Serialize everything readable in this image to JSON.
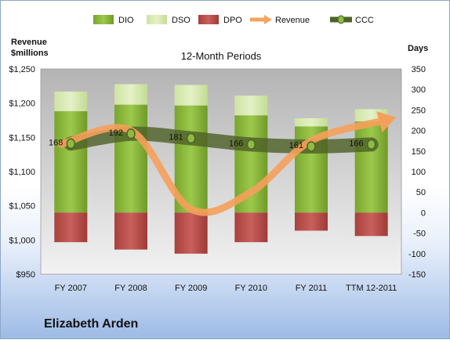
{
  "chart_data": {
    "type": "bar",
    "title": "12-Month Periods",
    "categories": [
      "FY 2007",
      "FY 2008",
      "FY 2009",
      "FY 2010",
      "FY 2011",
      "TTM 12-2011"
    ],
    "y_left": {
      "label_line1": "Revenue",
      "label_line2": "$millions",
      "range": [
        950,
        1250
      ],
      "ticks": [
        "$950",
        "$1,000",
        "$1,050",
        "$1,100",
        "$1,150",
        "$1,200",
        "$1,250"
      ]
    },
    "y_right": {
      "label": "Days",
      "range": [
        -150,
        350
      ],
      "ticks": [
        "-150",
        "-100",
        "-50",
        "0",
        "50",
        "100",
        "150",
        "200",
        "250",
        "300",
        "350"
      ]
    },
    "legend_position": "top",
    "grid": false,
    "series": [
      {
        "name": "DIO",
        "kind": "bar-positive",
        "axis": "right",
        "color": "#8fbc3f",
        "values": [
          247,
          263,
          261,
          237,
          210,
          222
        ]
      },
      {
        "name": "DSO",
        "kind": "bar-stacked",
        "axis": "right",
        "color": "#d8eab0",
        "values": [
          48,
          50,
          50,
          48,
          20,
          30
        ]
      },
      {
        "name": "DPO",
        "kind": "bar-negative",
        "axis": "right",
        "color": "#c0504d",
        "values": [
          -72,
          -90,
          -100,
          -72,
          -44,
          -57
        ]
      },
      {
        "name": "Revenue",
        "kind": "line",
        "axis": "left",
        "color": "#f4a460",
        "values": [
          1140,
          1160,
          1045,
          1070,
          1145,
          1175
        ]
      },
      {
        "name": "CCC",
        "kind": "line",
        "axis": "right",
        "color": "#4f6228",
        "values": [
          168,
          192,
          181,
          166,
          161,
          166
        ]
      }
    ],
    "ccc_labels": [
      "168",
      "192",
      "181",
      "166",
      "161",
      "166"
    ]
  },
  "company_name": "Elizabeth Arden"
}
